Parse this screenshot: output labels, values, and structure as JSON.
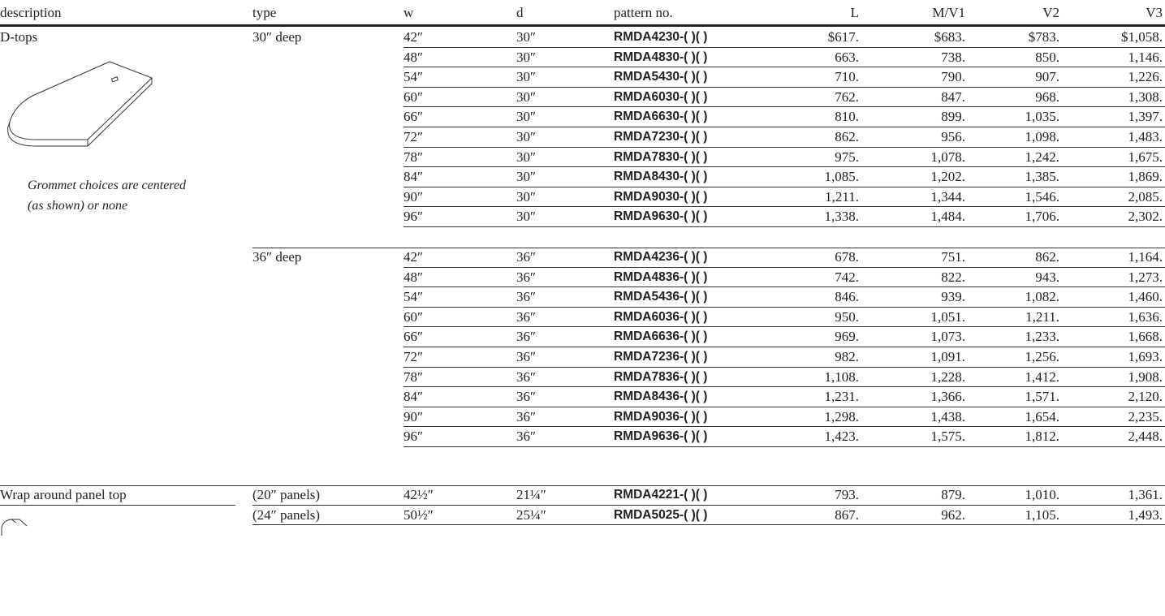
{
  "header": {
    "columns": [
      "description",
      "type",
      "w",
      "d",
      "pattern no.",
      "L",
      "M/V1",
      "V2",
      "V3"
    ]
  },
  "sections": [
    {
      "description": "D-tops",
      "note": [
        "Grommet choices are centered",
        "(as shown) or none"
      ],
      "groups": [
        {
          "type": "30″ deep",
          "rows": [
            [
              "42″",
              "30″",
              "RMDA4230-( )( )",
              "$617.",
              "$683.",
              "$783.",
              "$1,058."
            ],
            [
              "48″",
              "30″",
              "RMDA4830-( )( )",
              "663.",
              "738.",
              "850.",
              "1,146."
            ],
            [
              "54″",
              "30″",
              "RMDA5430-( )( )",
              "710.",
              "790.",
              "907.",
              "1,226."
            ],
            [
              "60″",
              "30″",
              "RMDA6030-( )( )",
              "762.",
              "847.",
              "968.",
              "1,308."
            ],
            [
              "66″",
              "30″",
              "RMDA6630-( )( )",
              "810.",
              "899.",
              "1,035.",
              "1,397."
            ],
            [
              "72″",
              "30″",
              "RMDA7230-( )( )",
              "862.",
              "956.",
              "1,098.",
              "1,483."
            ],
            [
              "78″",
              "30″",
              "RMDA7830-( )( )",
              "975.",
              "1,078.",
              "1,242.",
              "1,675."
            ],
            [
              "84″",
              "30″",
              "RMDA8430-( )( )",
              "1,085.",
              "1,202.",
              "1,385.",
              "1,869."
            ],
            [
              "90″",
              "30″",
              "RMDA9030-( )( )",
              "1,211.",
              "1,344.",
              "1,546.",
              "2,085."
            ],
            [
              "96″",
              "30″",
              "RMDA9630-( )( )",
              "1,338.",
              "1,484.",
              "1,706.",
              "2,302."
            ]
          ]
        },
        {
          "type": "36″ deep",
          "rows": [
            [
              "42″",
              "36″",
              "RMDA4236-( )( )",
              "678.",
              "751.",
              "862.",
              "1,164."
            ],
            [
              "48″",
              "36″",
              "RMDA4836-( )( )",
              "742.",
              "822.",
              "943.",
              "1,273."
            ],
            [
              "54″",
              "36″",
              "RMDA5436-( )( )",
              "846.",
              "939.",
              "1,082.",
              "1,460."
            ],
            [
              "60″",
              "36″",
              "RMDA6036-( )( )",
              "950.",
              "1,051.",
              "1,211.",
              "1,636."
            ],
            [
              "66″",
              "36″",
              "RMDA6636-( )( )",
              "969.",
              "1,073.",
              "1,233.",
              "1,668."
            ],
            [
              "72″",
              "36″",
              "RMDA7236-( )( )",
              "982.",
              "1,091.",
              "1,256.",
              "1,693."
            ],
            [
              "78″",
              "36″",
              "RMDA7836-( )( )",
              "1,108.",
              "1,228.",
              "1,412.",
              "1,908."
            ],
            [
              "84″",
              "36″",
              "RMDA8436-( )( )",
              "1,231.",
              "1,366.",
              "1,571.",
              "2,120."
            ],
            [
              "90″",
              "36″",
              "RMDA9036-( )( )",
              "1,298.",
              "1,438.",
              "1,654.",
              "2,235."
            ],
            [
              "96″",
              "36″",
              "RMDA9636-( )( )",
              "1,423.",
              "1,575.",
              "1,812.",
              "2,448."
            ]
          ]
        }
      ]
    },
    {
      "description": "Wrap around panel top",
      "groups": [
        {
          "type": "(20″ panels)",
          "rows": [
            [
              "42½″",
              "21¼″",
              "RMDA4221-( )( )",
              "793.",
              "879.",
              "1,010.",
              "1,361."
            ]
          ]
        },
        {
          "type": "(24″ panels)",
          "rows": [
            [
              "50½″",
              "25¼″",
              "RMDA5025-( )( )",
              "867.",
              "962.",
              "1,105.",
              "1,493."
            ]
          ]
        }
      ]
    }
  ]
}
